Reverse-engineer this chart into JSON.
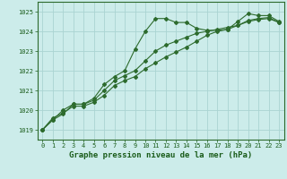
{
  "title": "Graphe pression niveau de la mer (hPa)",
  "background_color": "#ccecea",
  "grid_color": "#aad4d2",
  "line_color": "#2d6b2d",
  "xlim": [
    -0.5,
    23.5
  ],
  "ylim": [
    1018.5,
    1025.5
  ],
  "yticks": [
    1019,
    1020,
    1021,
    1022,
    1023,
    1024,
    1025
  ],
  "xticks": [
    0,
    1,
    2,
    3,
    4,
    5,
    6,
    7,
    8,
    9,
    10,
    11,
    12,
    13,
    14,
    15,
    16,
    17,
    18,
    19,
    20,
    21,
    22,
    23
  ],
  "series1_x": [
    0,
    1,
    2,
    3,
    4,
    5,
    6,
    7,
    8,
    9,
    10,
    11,
    12,
    13,
    14,
    15,
    16,
    17,
    18,
    19,
    20,
    21,
    22,
    23
  ],
  "series1_y": [
    1019.0,
    1019.5,
    1019.8,
    1020.3,
    1020.3,
    1020.5,
    1021.0,
    1021.5,
    1021.75,
    1022.0,
    1022.5,
    1023.0,
    1023.3,
    1023.5,
    1023.7,
    1023.9,
    1024.0,
    1024.1,
    1024.2,
    1024.3,
    1024.5,
    1024.6,
    1024.65,
    1024.45
  ],
  "series2_x": [
    0,
    1,
    2,
    3,
    4,
    5,
    6,
    7,
    8,
    9,
    10,
    11,
    12,
    13,
    14,
    15,
    16,
    17,
    18,
    19,
    20,
    21,
    22,
    23
  ],
  "series2_y": [
    1019.0,
    1019.5,
    1020.0,
    1020.3,
    1020.3,
    1020.6,
    1021.3,
    1021.7,
    1022.0,
    1023.1,
    1024.0,
    1024.65,
    1024.65,
    1024.45,
    1024.45,
    1024.15,
    1024.05,
    1024.05,
    1024.1,
    1024.5,
    1024.9,
    1024.8,
    1024.8,
    1024.5
  ],
  "series3_x": [
    0,
    1,
    2,
    3,
    4,
    5,
    6,
    7,
    8,
    9,
    10,
    11,
    12,
    13,
    14,
    15,
    16,
    17,
    18,
    19,
    20,
    21,
    22,
    23
  ],
  "series3_y": [
    1019.0,
    1019.6,
    1019.85,
    1020.2,
    1020.2,
    1020.4,
    1020.75,
    1021.25,
    1021.5,
    1021.7,
    1022.1,
    1022.4,
    1022.7,
    1022.95,
    1023.2,
    1023.5,
    1023.8,
    1024.0,
    1024.1,
    1024.3,
    1024.55,
    1024.65,
    1024.7,
    1024.45
  ],
  "marker": "D",
  "markersize": 2.0,
  "linewidth": 0.8,
  "title_fontsize": 6.5,
  "tick_fontsize": 5.0,
  "title_color": "#1a5c1a",
  "tick_color": "#1a5c1a"
}
